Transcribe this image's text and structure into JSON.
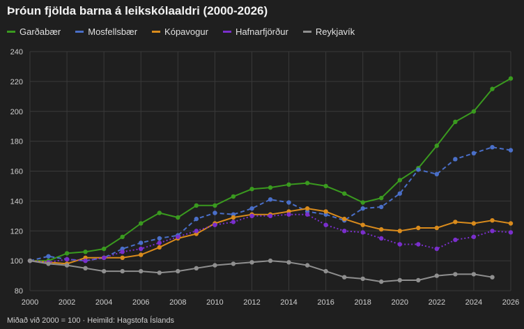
{
  "chart_data": {
    "type": "line",
    "title": "Þróun fjölda barna á leikskólaaldri (2000-2026)",
    "footnote": "Miðað við 2000 = 100 · Heimild: Hagstofa Íslands",
    "x": [
      2000,
      2001,
      2002,
      2003,
      2004,
      2005,
      2006,
      2007,
      2008,
      2009,
      2010,
      2011,
      2012,
      2013,
      2014,
      2015,
      2016,
      2017,
      2018,
      2019,
      2020,
      2021,
      2022,
      2023,
      2024,
      2025,
      2026
    ],
    "xlim": [
      2000,
      2026
    ],
    "ylim": [
      80,
      240
    ],
    "xticks": [
      2000,
      2002,
      2004,
      2006,
      2008,
      2010,
      2012,
      2014,
      2016,
      2018,
      2020,
      2022,
      2024,
      2026
    ],
    "yticks": [
      80,
      100,
      120,
      140,
      160,
      180,
      200,
      220,
      240
    ],
    "xlabel": "",
    "ylabel": "",
    "grid": true,
    "legend_position": "top-left",
    "series": [
      {
        "name": "Garðabær",
        "color": "#3a9a1f",
        "dash": "solid",
        "values": [
          100,
          100,
          105,
          106,
          108,
          116,
          125,
          132,
          129,
          137,
          137,
          143,
          148,
          149,
          151,
          152,
          150,
          145,
          139,
          142,
          154,
          162,
          177,
          193,
          200,
          215,
          222
        ]
      },
      {
        "name": "Mosfellsbær",
        "color": "#4a6fc8",
        "dash": "dashed",
        "values": [
          100,
          103,
          101,
          100,
          102,
          108,
          112,
          115,
          117,
          128,
          132,
          131,
          135,
          141,
          139,
          133,
          131,
          127,
          135,
          136,
          145,
          161,
          158,
          168,
          172,
          176,
          174
        ]
      },
      {
        "name": "Kópavogur",
        "color": "#d98b1c",
        "dash": "solid",
        "values": [
          100,
          99,
          98,
          102,
          102,
          102,
          104,
          109,
          115,
          118,
          125,
          129,
          131,
          131,
          133,
          135,
          133,
          128,
          124,
          121,
          120,
          122,
          122,
          126,
          125,
          127,
          125
        ]
      },
      {
        "name": "Hafnarfjörður",
        "color": "#7a2fcc",
        "dash": "dotted",
        "values": [
          100,
          99,
          101,
          100,
          102,
          106,
          108,
          112,
          116,
          120,
          124,
          126,
          130,
          130,
          131,
          131,
          124,
          120,
          119,
          115,
          111,
          111,
          108,
          114,
          116,
          120,
          119
        ]
      },
      {
        "name": "Reykjavík",
        "color": "#8f8f8f",
        "dash": "solid",
        "values": [
          100,
          98,
          97,
          95,
          93,
          93,
          93,
          92,
          93,
          95,
          97,
          98,
          99,
          100,
          99,
          97,
          93,
          89,
          88,
          86,
          87,
          87,
          90,
          91,
          91,
          89,
          null
        ]
      }
    ]
  }
}
